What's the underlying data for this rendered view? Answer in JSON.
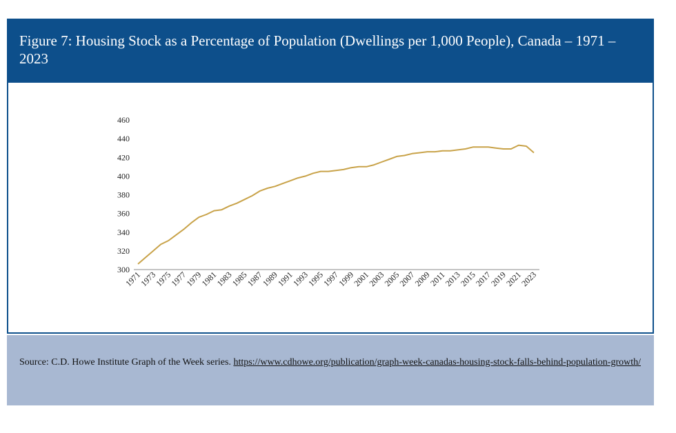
{
  "title": "Figure 7: Housing Stock as a Percentage of Population (Dwellings per 1,000 People), Canada – 1971 – 2023",
  "source": {
    "text": "Source: C.D. Howe Institute Graph of the Week series. ",
    "link": "https://www.cdhowe.org/publication/graph-week-canadas-housing-stock-falls-behind-population-growth/"
  },
  "colors": {
    "header": "#0d4f8b",
    "source_bg": "#a8b8d2",
    "line": "#c8a248"
  },
  "chart_data": {
    "type": "line",
    "title": "",
    "xlabel": "",
    "ylabel": "",
    "ylim": [
      300,
      460
    ],
    "yticks": [
      300,
      320,
      340,
      360,
      380,
      400,
      420,
      440,
      460
    ],
    "xtick_labels": [
      "1971",
      "1973",
      "1975",
      "1977",
      "1979",
      "1981",
      "1983",
      "1985",
      "1987",
      "1989",
      "1991",
      "1993",
      "1995",
      "1997",
      "1999",
      "2001",
      "2003",
      "2005",
      "2007",
      "2009",
      "2011",
      "2013",
      "2015",
      "2017",
      "2019",
      "2021",
      "2023"
    ],
    "grid": false,
    "legend": "none",
    "x": [
      1971,
      1972,
      1973,
      1974,
      1975,
      1976,
      1977,
      1978,
      1979,
      1980,
      1981,
      1982,
      1983,
      1984,
      1985,
      1986,
      1987,
      1988,
      1989,
      1990,
      1991,
      1992,
      1993,
      1994,
      1995,
      1996,
      1997,
      1998,
      1999,
      2000,
      2001,
      2002,
      2003,
      2004,
      2005,
      2006,
      2007,
      2008,
      2009,
      2010,
      2011,
      2012,
      2013,
      2014,
      2015,
      2016,
      2017,
      2018,
      2019,
      2020,
      2021,
      2022,
      2023
    ],
    "series": [
      {
        "values": [
          306,
          313,
          320,
          327,
          331,
          337,
          343,
          350,
          356,
          359,
          363,
          364,
          368,
          371,
          375,
          379,
          384,
          387,
          389,
          392,
          395,
          398,
          400,
          403,
          405,
          405,
          406,
          407,
          409,
          410,
          410,
          412,
          415,
          418,
          421,
          422,
          424,
          425,
          426,
          426,
          427,
          427,
          428,
          429,
          431,
          431,
          431,
          430,
          429,
          429,
          433,
          432,
          425
        ]
      }
    ]
  }
}
